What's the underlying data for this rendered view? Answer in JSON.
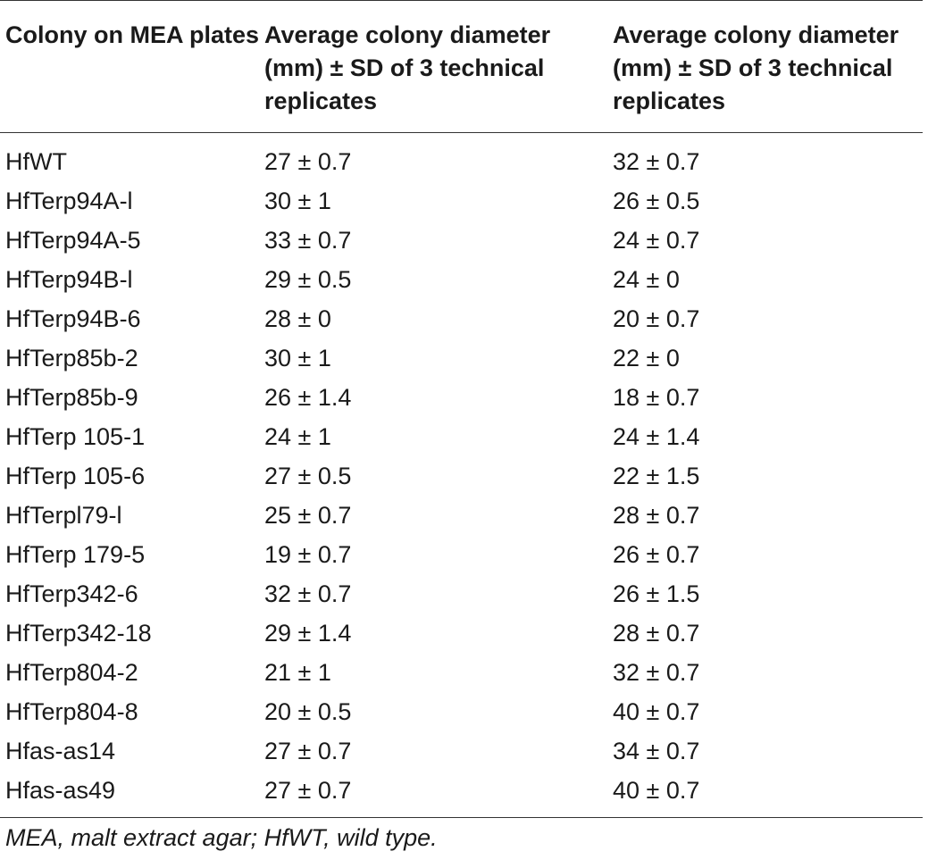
{
  "table": {
    "headers": [
      "Colony on MEA plates",
      "Average colony diameter (mm) ± SD of 3 technical replicates",
      "Average colony diameter (mm) ± SD of 3 technical replicates"
    ],
    "rows": [
      [
        "HfWT",
        "27 ± 0.7",
        "32 ± 0.7"
      ],
      [
        "HfTerp94A-l",
        "30 ± 1",
        "26 ± 0.5"
      ],
      [
        "HfTerp94A-5",
        "33 ± 0.7",
        "24 ± 0.7"
      ],
      [
        "HfTerp94B-l",
        "29 ± 0.5",
        "24 ± 0"
      ],
      [
        "HfTerp94B-6",
        "28 ± 0",
        "20 ± 0.7"
      ],
      [
        "HfTerp85b-2",
        "30 ± 1",
        "22 ± 0"
      ],
      [
        "HfTerp85b-9",
        "26 ± 1.4",
        "18 ± 0.7"
      ],
      [
        "HfTerp 105-1",
        "24 ± 1",
        "24 ± 1.4"
      ],
      [
        "HfTerp 105-6",
        "27 ± 0.5",
        "22 ± 1.5"
      ],
      [
        "HfTerpl79-l",
        "25 ± 0.7",
        "28 ± 0.7"
      ],
      [
        "HfTerp 179-5",
        "19 ± 0.7",
        "26 ± 0.7"
      ],
      [
        "HfTerp342-6",
        "32 ± 0.7",
        "26 ± 1.5"
      ],
      [
        "HfTerp342-18",
        "29 ± 1.4",
        "28 ± 0.7"
      ],
      [
        "HfTerp804-2",
        "21 ± 1",
        "32 ± 0.7"
      ],
      [
        "HfTerp804-8",
        "20 ± 0.5",
        "40 ± 0.7"
      ],
      [
        "Hfas-as14",
        "27 ± 0.7",
        "34 ± 0.7"
      ],
      [
        "Hfas-as49",
        "27 ± 0.7",
        "40 ± 0.7"
      ]
    ]
  },
  "footnote": "MEA, malt extract agar; HfWT, wild type."
}
